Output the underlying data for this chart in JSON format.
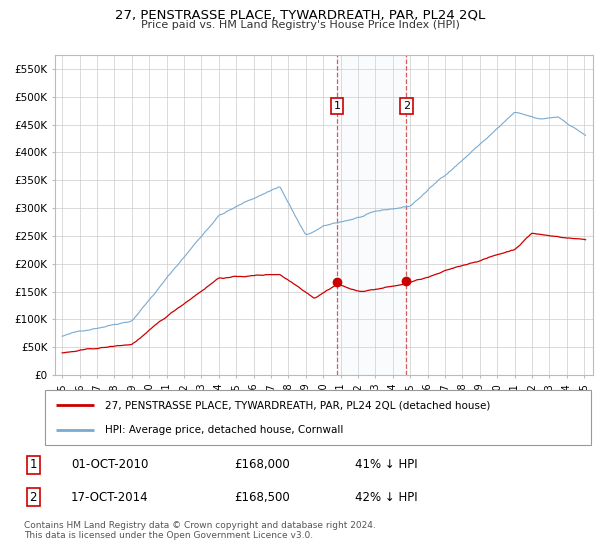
{
  "title": "27, PENSTRASSE PLACE, TYWARDREATH, PAR, PL24 2QL",
  "subtitle": "Price paid vs. HM Land Registry's House Price Index (HPI)",
  "ylabel_ticks": [
    "£0",
    "£50K",
    "£100K",
    "£150K",
    "£200K",
    "£250K",
    "£300K",
    "£350K",
    "£400K",
    "£450K",
    "£500K",
    "£550K"
  ],
  "ytick_values": [
    0,
    50000,
    100000,
    150000,
    200000,
    250000,
    300000,
    350000,
    400000,
    450000,
    500000,
    550000
  ],
  "ylim": [
    0,
    575000
  ],
  "hpi_color": "#7aaad0",
  "price_color": "#cc0000",
  "transaction1_date": "01-OCT-2010",
  "transaction1_price": "£168,000",
  "transaction1_hpi": "41% ↓ HPI",
  "transaction2_date": "17-OCT-2014",
  "transaction2_price": "£168,500",
  "transaction2_hpi": "42% ↓ HPI",
  "legend_label1": "27, PENSTRASSE PLACE, TYWARDREATH, PAR, PL24 2QL (detached house)",
  "legend_label2": "HPI: Average price, detached house, Cornwall",
  "footer": "Contains HM Land Registry data © Crown copyright and database right 2024.\nThis data is licensed under the Open Government Licence v3.0.",
  "vline1_year": 2010.79,
  "vline2_year": 2014.79,
  "transaction1_value": 168000,
  "transaction2_value": 168500
}
